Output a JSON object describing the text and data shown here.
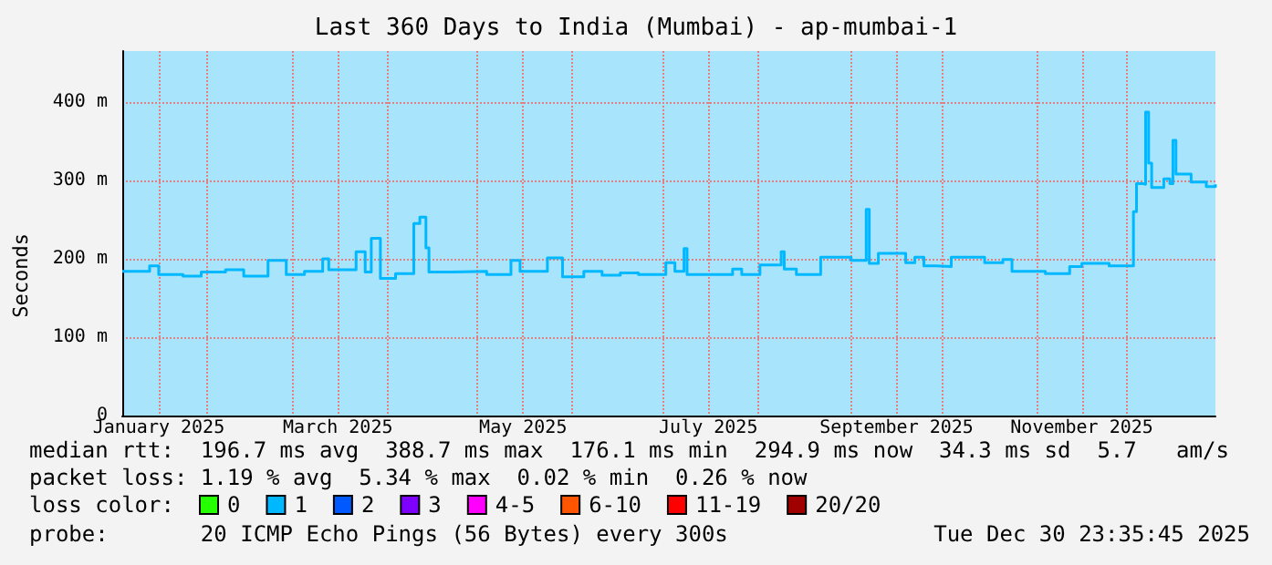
{
  "chart_data": {
    "type": "step",
    "title": "Last 360 Days to India (Mumbai) - ap-mumbai-1",
    "ylabel": "Seconds",
    "legend_title": "loss color:",
    "legend": "bottom left",
    "grid": true,
    "marker": "none",
    "xlim": [
      "2025-01-04",
      "2025-12-30"
    ],
    "xticks": [
      {
        "value": "2025-01-16",
        "label": "January 2025"
      },
      {
        "value": "2025-02-01",
        "label": null
      },
      {
        "value": "2025-03-01",
        "label": null
      },
      {
        "value": "2025-03-16",
        "label": "March 2025"
      },
      {
        "value": "2025-04-01",
        "label": null
      },
      {
        "value": "2025-05-01",
        "label": null
      },
      {
        "value": "2025-05-16",
        "label": "May 2025"
      },
      {
        "value": "2025-06-01",
        "label": null
      },
      {
        "value": "2025-07-01",
        "label": null
      },
      {
        "value": "2025-07-16",
        "label": "July 2025"
      },
      {
        "value": "2025-08-01",
        "label": null
      },
      {
        "value": "2025-09-01",
        "label": null
      },
      {
        "value": "2025-09-16",
        "label": "September 2025"
      },
      {
        "value": "2025-10-01",
        "label": null
      },
      {
        "value": "2025-11-01",
        "label": null
      },
      {
        "value": "2025-11-16",
        "label": "November 2025"
      },
      {
        "value": "2025-12-01",
        "label": null
      }
    ],
    "ylim": [
      0,
      465
    ],
    "yticks": [
      0,
      {
        "value": 100,
        "label": "100 m"
      },
      {
        "value": 200,
        "label": "200 m"
      },
      {
        "value": 300,
        "label": "300 m"
      },
      {
        "value": 400,
        "label": "400 m"
      }
    ],
    "series": [
      {
        "name": "0",
        "color": "#26ff00"
      },
      {
        "name": "1",
        "color": "#00b8ff",
        "x": [
          "2025-01-04",
          "2025-01-13",
          "2025-01-16",
          "2025-01-24",
          "2025-01-30",
          "2025-02-07",
          "2025-02-13",
          "2025-02-21",
          "2025-02-27",
          "2025-03-05",
          "2025-03-11",
          "2025-03-13",
          "2025-03-22",
          "2025-03-25",
          "2025-03-27",
          "2025-03-30",
          "2025-04-04",
          "2025-04-10",
          "2025-04-12",
          "2025-04-14",
          "2025-04-15",
          "2025-04-22",
          "2025-05-04",
          "2025-05-12",
          "2025-05-15",
          "2025-05-24",
          "2025-05-29",
          "2025-06-05",
          "2025-06-11",
          "2025-06-17",
          "2025-06-23",
          "2025-06-25",
          "2025-07-02",
          "2025-07-05",
          "2025-07-08",
          "2025-07-09",
          "2025-07-24",
          "2025-07-27",
          "2025-08-02",
          "2025-08-09",
          "2025-08-10",
          "2025-08-14",
          "2025-08-22",
          "2025-09-01",
          "2025-09-06",
          "2025-09-07",
          "2025-09-10",
          "2025-09-19",
          "2025-09-22",
          "2025-09-25",
          "2025-09-29",
          "2025-10-04",
          "2025-10-15",
          "2025-10-21",
          "2025-10-24",
          "2025-11-04",
          "2025-11-12",
          "2025-11-16",
          "2025-11-25",
          "2025-12-01",
          "2025-12-03",
          "2025-12-04",
          "2025-12-06",
          "2025-12-07",
          "2025-12-08",
          "2025-12-09",
          "2025-12-13",
          "2025-12-15",
          "2025-12-16",
          "2025-12-17",
          "2025-12-22",
          "2025-12-27",
          "2025-12-30"
        ],
        "values": [
          184,
          191,
          180,
          178,
          183,
          186,
          178,
          198,
          180,
          184,
          200,
          186,
          209,
          183,
          226,
          175,
          181,
          245,
          253,
          214,
          183,
          184,
          180,
          198,
          184,
          201,
          177,
          184,
          179,
          182,
          180,
          180,
          195,
          184,
          213,
          180,
          187,
          180,
          192,
          209,
          187,
          180,
          202,
          198,
          263,
          194,
          207,
          195,
          202,
          191,
          190,
          202,
          195,
          199,
          184,
          181,
          190,
          194,
          191,
          191,
          260,
          296,
          295,
          387,
          322,
          291,
          302,
          296,
          351,
          308,
          298,
          292,
          295
        ]
      },
      {
        "name": "2",
        "color": "#0059ff"
      },
      {
        "name": "3",
        "color": "#7e00ff"
      },
      {
        "name": "4-5",
        "color": "#ff00ff"
      },
      {
        "name": "6-10",
        "color": "#ff5500"
      },
      {
        "name": "11-19",
        "color": "#ff0000"
      },
      {
        "name": "20/20",
        "color": "#a10000"
      }
    ],
    "annotations": [
      "median rtt:  196.7 ms avg  388.7 ms max  176.1 ms min  294.9 ms now  34.3 ms sd  5.7   am/s",
      "packet loss: 1.19 % avg  5.34 % max  0.02 % min  0.26 % now",
      "probe:       20 ICMP Echo Pings (56 Bytes) every 300s",
      "Tue Dec 30 23:35:45 2025"
    ]
  }
}
